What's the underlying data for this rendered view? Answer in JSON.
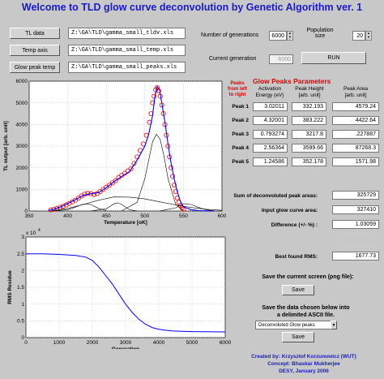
{
  "title": "Welcome to TLD glow curve deconvolution by Genetic Algorithm ver. 1",
  "files": [
    {
      "button": "TL data",
      "path": "Z:\\GA\\TLD\\gamma_small_tldv.xls"
    },
    {
      "button": "Temp axis",
      "path": "Z:\\GA\\TLD\\gamma_small_temp.xls"
    },
    {
      "button": "Glow peak temp",
      "path": "Z:\\GA\\TLD\\gamma_small_peaks.xls"
    }
  ],
  "generations": {
    "label": "Number of generations",
    "value": "6000"
  },
  "population": {
    "label1": "Population",
    "label2": "size",
    "value": "20"
  },
  "current_generation": {
    "label": "Current generation",
    "value": "6000"
  },
  "run_label": "RUN",
  "peaks_table": {
    "title": "Glow Peaks Parameters",
    "side_note": [
      "Peaks",
      "from left",
      "to right"
    ],
    "col_activation": [
      "Activation",
      "Energy (eV)"
    ],
    "col_height": [
      "Peak Height",
      "[arb. unit]"
    ],
    "col_area": [
      "Peak Area",
      "[arb. unit]"
    ],
    "rows": [
      {
        "label": "Peak 1",
        "energy": "3.02011",
        "height": "332.193",
        "area": "4579.24"
      },
      {
        "label": "Peak 2",
        "energy": "4.32001",
        "height": "383.222",
        "area": "4422.64"
      },
      {
        "label": "Peak 3",
        "energy": "0.793274",
        "height": "3217.8",
        "area": ".227887"
      },
      {
        "label": "Peak 4",
        "energy": "2.56364",
        "height": "3599.66",
        "area": "87268.3"
      },
      {
        "label": "Peak 5",
        "energy": "1.24586",
        "height": "352.178",
        "area": "1571.98"
      }
    ]
  },
  "summary": {
    "deconvoluted_label": "Sum of deconvoluted peak areas:",
    "deconvoluted_value": "325729",
    "input_label": "Input glow curve area:",
    "input_value": "327410",
    "difference_label": "Difference (+/- %) :",
    "difference_value": "1.03059",
    "rms_label": "Best found RMS:",
    "rms_value": "1677.73"
  },
  "save_screen": {
    "label": "Save the current screen (png file):",
    "button": "Save"
  },
  "save_data": {
    "label1": "Save the data chosen below into",
    "label2": "a delimited ASCII file.",
    "select_value": "Deconvoluted Glow peaks",
    "button": "Save"
  },
  "credits": {
    "created": "Created by:  Krzysztof Korzunowicz (WUT)",
    "concept": "Concept:  Bhaskar Mukherjee",
    "desy": "DESY, January 2006"
  },
  "colors": {
    "title": "#1a1ac8",
    "peaks_title": "#e00000",
    "credits": "#1a1ac8",
    "markers": "#ff0000",
    "fit": "#0000ff"
  },
  "chart_data": [
    {
      "type": "line",
      "xlabel": "Temperature [oK]",
      "ylabel": "TL output [arb. unit]",
      "xlim": [
        350,
        600
      ],
      "ylim": [
        0,
        6000
      ],
      "xticks": [
        350,
        400,
        450,
        500,
        550,
        600
      ],
      "yticks": [
        0,
        1000,
        2000,
        3000,
        4000,
        5000,
        6000
      ],
      "grid": true,
      "series": [
        {
          "style": "markers",
          "x": [
            378,
            382,
            386,
            390,
            394,
            398,
            402,
            406,
            410,
            414,
            418,
            422,
            426,
            430,
            434,
            438,
            442,
            446,
            450,
            454,
            458,
            462,
            466,
            470,
            474,
            478,
            482,
            486,
            490,
            494,
            498,
            502,
            506,
            508,
            510,
            512,
            514,
            516,
            518,
            520,
            522,
            524,
            526,
            528,
            530,
            532,
            534,
            536,
            538,
            540,
            542,
            544,
            546,
            548,
            550
          ],
          "y": [
            50,
            80,
            120,
            170,
            220,
            280,
            350,
            420,
            500,
            600,
            700,
            780,
            820,
            800,
            760,
            800,
            900,
            1000,
            1100,
            1200,
            1300,
            1400,
            1550,
            1650,
            1750,
            1850,
            1950,
            2200,
            2500,
            2800,
            3100,
            3500,
            4100,
            4500,
            5000,
            5300,
            5600,
            5700,
            5550,
            5300,
            4900,
            4500,
            4000,
            3500,
            3000,
            2500,
            2000,
            1600,
            1200,
            900,
            600,
            400,
            250,
            150,
            80
          ]
        },
        {
          "style": "line",
          "x": [
            375,
            380,
            390,
            400,
            410,
            420,
            430,
            440,
            450,
            460,
            470,
            480,
            490,
            500,
            505,
            510,
            513,
            516,
            519,
            522,
            526,
            530,
            534,
            538,
            542,
            546,
            550,
            560,
            570,
            580,
            590
          ],
          "y": [
            30,
            60,
            180,
            350,
            520,
            720,
            800,
            850,
            1080,
            1350,
            1600,
            1820,
            2350,
            3000,
            3550,
            4400,
            5300,
            5750,
            5600,
            5000,
            4100,
            3100,
            2200,
            1500,
            900,
            450,
            200,
            60,
            20,
            8,
            2
          ]
        },
        {
          "style": "line",
          "x": [
            380,
            400,
            410,
            420,
            425,
            430,
            440,
            450
          ],
          "y": [
            5,
            60,
            180,
            320,
            330,
            300,
            120,
            20
          ]
        },
        {
          "style": "line",
          "x": [
            430,
            450,
            460,
            465,
            470,
            480,
            490
          ],
          "y": [
            5,
            100,
            330,
            380,
            300,
            60,
            5
          ]
        },
        {
          "style": "line",
          "x": [
            380,
            400,
            420,
            440,
            460,
            480,
            500,
            520,
            540,
            560,
            580,
            600
          ],
          "y": [
            20,
            120,
            300,
            500,
            650,
            640,
            560,
            420,
            280,
            160,
            80,
            30
          ]
        },
        {
          "style": "line",
          "x": [
            470,
            490,
            500,
            510,
            515,
            520,
            525,
            530,
            540,
            550
          ],
          "y": [
            5,
            400,
            1500,
            3200,
            3550,
            3300,
            2500,
            1500,
            300,
            20
          ]
        },
        {
          "style": "line",
          "x": [
            520,
            540,
            550,
            560,
            570,
            580,
            590
          ],
          "y": [
            5,
            150,
            340,
            300,
            160,
            50,
            5
          ]
        }
      ]
    },
    {
      "type": "line",
      "xlabel": "Generation",
      "ylabel": "RMS Residue",
      "exponent_label": "x 10",
      "exponent_power": "4",
      "xlim": [
        0,
        6000
      ],
      "ylim": [
        0,
        3
      ],
      "xticks": [
        0,
        1000,
        2000,
        3000,
        4000,
        5000,
        6000
      ],
      "yticks": [
        0,
        0.5,
        1,
        1.5,
        2,
        2.5,
        3
      ],
      "grid": true,
      "series": [
        {
          "x": [
            0,
            500,
            1000,
            1500,
            1800,
            2000,
            2200,
            2400,
            2600,
            2800,
            3000,
            3200,
            3400,
            3600,
            3800,
            4000,
            4200,
            4400,
            4600,
            5000,
            6000
          ],
          "y": [
            2.5,
            2.5,
            2.48,
            2.45,
            2.4,
            2.3,
            2.1,
            1.85,
            1.6,
            1.3,
            1.0,
            0.75,
            0.55,
            0.4,
            0.3,
            0.25,
            0.22,
            0.2,
            0.19,
            0.18,
            0.17
          ]
        }
      ]
    }
  ]
}
